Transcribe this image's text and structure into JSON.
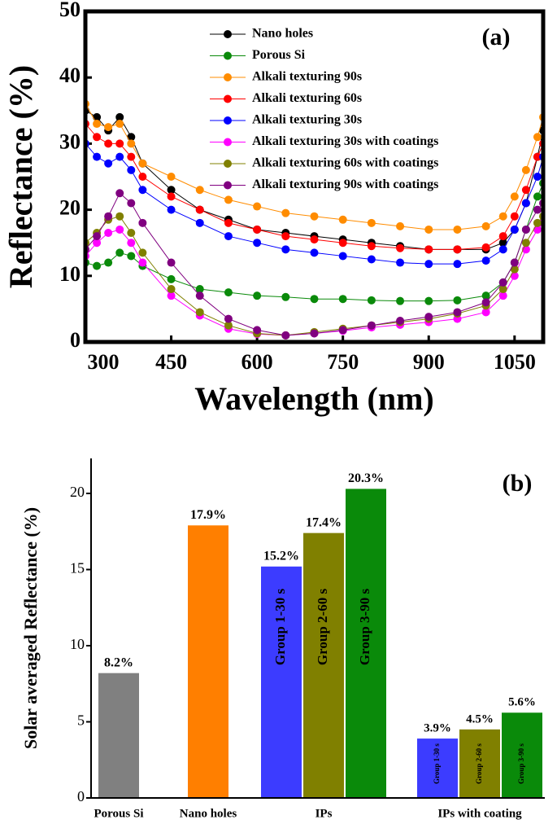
{
  "chart_data": [
    {
      "type": "line",
      "annotation": "(a)",
      "x_label": "Wavelength (nm)",
      "y_label": "Reflectance (%)",
      "x": [
        300,
        320,
        340,
        360,
        380,
        400,
        450,
        500,
        550,
        600,
        650,
        700,
        750,
        800,
        850,
        900,
        950,
        1000,
        1030,
        1050,
        1070,
        1090,
        1100
      ],
      "series": [
        {
          "name": "Nano holes",
          "color": "#000000",
          "values": [
            35,
            34,
            32,
            34,
            31,
            27,
            23,
            20,
            18.5,
            17,
            16.5,
            16,
            15.5,
            15,
            14.5,
            14,
            14,
            14,
            15,
            17,
            21,
            28,
            32
          ]
        },
        {
          "name": "Porous Si",
          "color": "#0a8a0a",
          "values": [
            12,
            11.5,
            12,
            13.5,
            13,
            11.5,
            9.5,
            8,
            7.5,
            7,
            6.8,
            6.5,
            6.5,
            6.3,
            6.2,
            6.2,
            6.3,
            7,
            9,
            12,
            17,
            22,
            24
          ]
        },
        {
          "name": "Alkali texturing 90s",
          "color": "#ff8c00",
          "values": [
            36,
            33,
            32.5,
            33,
            30,
            27,
            25,
            23,
            21.5,
            20.5,
            19.5,
            19,
            18.5,
            18,
            17.5,
            17,
            17,
            17.5,
            19,
            22,
            26,
            31,
            34
          ]
        },
        {
          "name": "Alkali texturing 60s",
          "color": "#ff0000",
          "values": [
            33,
            31,
            30,
            30,
            28,
            25,
            22,
            20,
            18,
            17,
            16,
            15.5,
            15,
            14.5,
            14.2,
            14,
            14,
            14.3,
            16,
            19,
            23,
            28,
            30
          ]
        },
        {
          "name": "Alkali texturing 30s",
          "color": "#0000ff",
          "values": [
            30,
            28,
            27,
            28,
            26,
            23,
            20,
            18,
            16,
            15,
            14,
            13.5,
            13,
            12.5,
            12,
            11.8,
            11.8,
            12.3,
            14,
            17,
            21,
            25,
            28
          ]
        },
        {
          "name": "Alkali texturing 30s with coatings",
          "color": "#ff00ff",
          "values": [
            13,
            15,
            16.5,
            17,
            15,
            12,
            7,
            4,
            2,
            1.2,
            1,
            1.3,
            1.7,
            2.2,
            2.6,
            3,
            3.5,
            4.5,
            7,
            10,
            14,
            17,
            18
          ]
        },
        {
          "name": "Alkali texturing 60s with coatings",
          "color": "#808000",
          "values": [
            15,
            16.5,
            18.5,
            19,
            16.5,
            13.5,
            8,
            4.5,
            2.5,
            1.3,
            1,
            1.5,
            2,
            2.5,
            3,
            3.5,
            4.3,
            5.5,
            8,
            11,
            15,
            18,
            19
          ]
        },
        {
          "name": "Alkali texturing 90s with coatings",
          "color": "#800080",
          "values": [
            14,
            16,
            19,
            22.5,
            21,
            18,
            12,
            7,
            3.5,
            1.8,
            1,
            1.3,
            1.8,
            2.5,
            3.2,
            3.8,
            4.5,
            6,
            9,
            12,
            17,
            20,
            21
          ]
        }
      ],
      "xlim": [
        300,
        1100
      ],
      "xticks": [
        300,
        450,
        600,
        750,
        900,
        1050
      ],
      "ylim": [
        0,
        50
      ],
      "yticks": [
        0,
        10,
        20,
        30,
        40,
        50
      ],
      "legend": "top"
    },
    {
      "type": "bar",
      "annotation": "(b)",
      "y_label": "Solar averaged Reflectance (%)",
      "groups": [
        {
          "name": "Porous Si",
          "bars": [
            {
              "value": 8.2,
              "value_label": "8.2%",
              "color": "#808080"
            }
          ]
        },
        {
          "name": "Nano holes",
          "bars": [
            {
              "value": 17.9,
              "value_label": "17.9%",
              "color": "#ff7f00"
            }
          ]
        },
        {
          "name": "IPs",
          "bars": [
            {
              "label": "Group 1-30 s",
              "value": 15.2,
              "value_label": "15.2%",
              "color": "#3c3cff"
            },
            {
              "label": "Group 2-60 s",
              "value": 17.4,
              "value_label": "17.4%",
              "color": "#808000"
            },
            {
              "label": "Group 3-90 s",
              "value": 20.3,
              "value_label": "20.3%",
              "color": "#0a8a0a"
            }
          ]
        },
        {
          "name": "IPs with coating",
          "bars": [
            {
              "label": "Group 1-30 s",
              "value": 3.9,
              "value_label": "3.9%",
              "color": "#3c3cff"
            },
            {
              "label": "Group 2-60 s",
              "value": 4.5,
              "value_label": "4.5%",
              "color": "#808000"
            },
            {
              "label": "Group 3-90 s",
              "value": 5.6,
              "value_label": "5.6%",
              "color": "#0a8a0a"
            }
          ]
        }
      ],
      "ylim": [
        0,
        22.3
      ],
      "yticks": [
        0,
        5,
        10,
        15,
        20
      ]
    }
  ]
}
